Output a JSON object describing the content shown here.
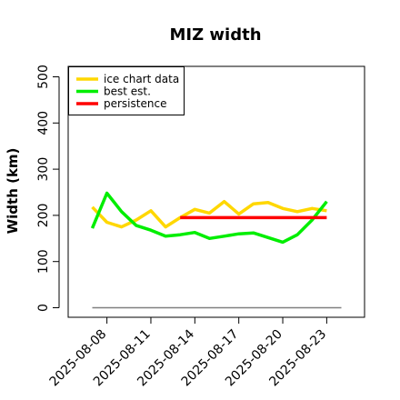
{
  "chart_data": {
    "type": "line",
    "title": "MIZ width",
    "ylabel": "Width (km)",
    "xlabel": "",
    "ylim": [
      0,
      500
    ],
    "y_ticks": [
      0,
      100,
      200,
      300,
      400,
      500
    ],
    "x_ticks": [
      "2025-08-08",
      "2025-08-11",
      "2025-08-14",
      "2025-08-17",
      "2025-08-20",
      "2025-08-23"
    ],
    "x_range": [
      "2025-08-07",
      "2025-08-24"
    ],
    "legend_position": "top-left",
    "reference_line": {
      "value": 0,
      "color": "#808080"
    },
    "series": [
      {
        "name": "ice chart data",
        "color": "#FFD700",
        "x": [
          "2025-08-07",
          "2025-08-08",
          "2025-08-09",
          "2025-08-10",
          "2025-08-11",
          "2025-08-12",
          "2025-08-13",
          "2025-08-14",
          "2025-08-15",
          "2025-08-16",
          "2025-08-17",
          "2025-08-18",
          "2025-08-19",
          "2025-08-20",
          "2025-08-21",
          "2025-08-22",
          "2025-08-23"
        ],
        "values": [
          218,
          185,
          175,
          190,
          210,
          175,
          195,
          213,
          205,
          230,
          203,
          225,
          228,
          215,
          208,
          215,
          210
        ]
      },
      {
        "name": "best est.",
        "color": "#00EE00",
        "x": [
          "2025-08-07",
          "2025-08-08",
          "2025-08-09",
          "2025-08-10",
          "2025-08-11",
          "2025-08-12",
          "2025-08-13",
          "2025-08-14",
          "2025-08-15",
          "2025-08-16",
          "2025-08-17",
          "2025-08-18",
          "2025-08-19",
          "2025-08-20",
          "2025-08-21",
          "2025-08-22",
          "2025-08-23"
        ],
        "values": [
          172,
          248,
          208,
          178,
          168,
          155,
          158,
          163,
          150,
          155,
          160,
          162,
          152,
          142,
          158,
          190,
          230
        ]
      },
      {
        "name": "persistence",
        "color": "#FF0000",
        "x": [
          "2025-08-13",
          "2025-08-23"
        ],
        "values": [
          195,
          195
        ]
      }
    ]
  }
}
